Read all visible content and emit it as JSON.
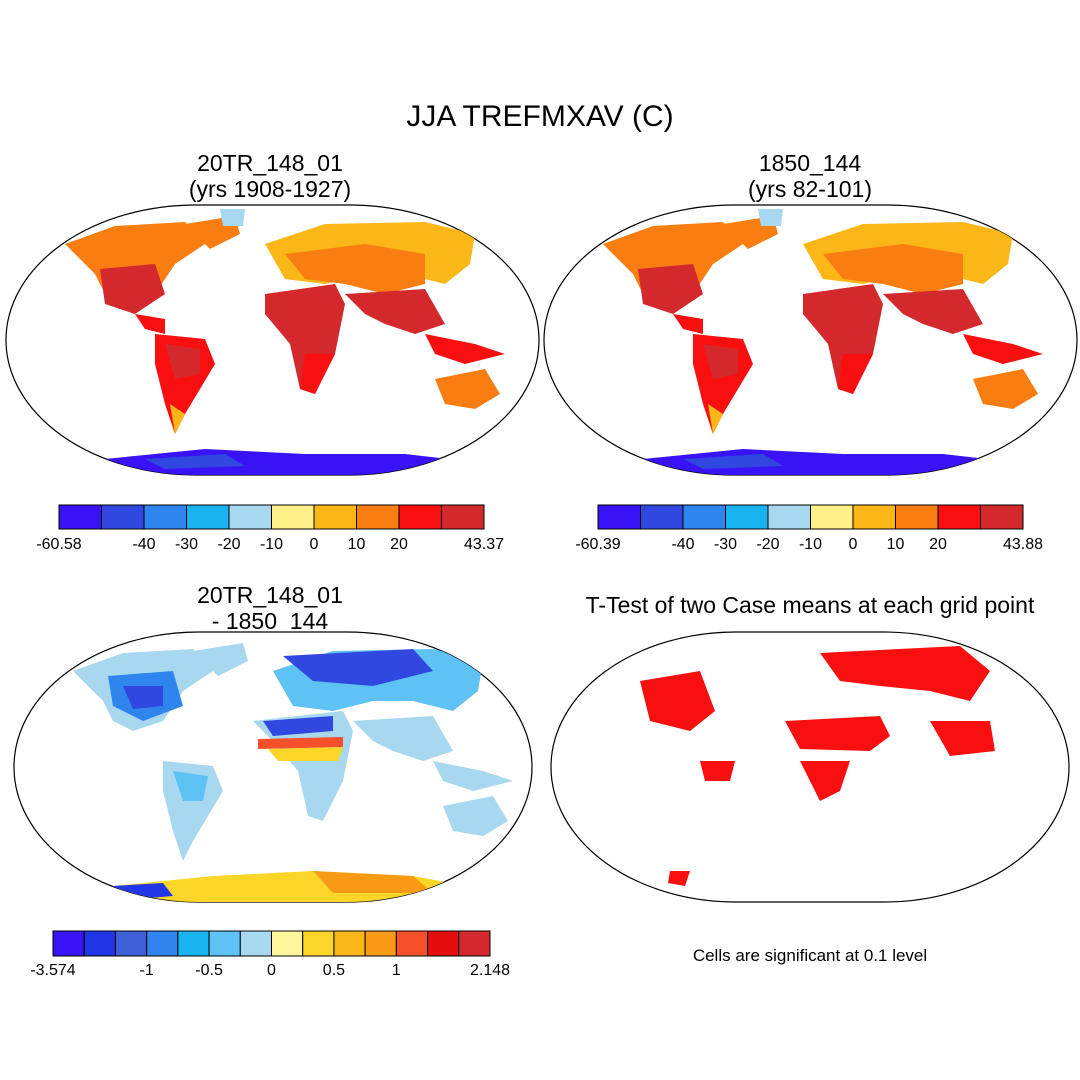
{
  "title": "JJA TREFMXAV (C)",
  "panels": [
    {
      "line1": "20TR_148_01",
      "line2": "(yrs 1908-1927)"
    },
    {
      "line1": "1850_144",
      "line2": "(yrs 82-101)"
    },
    {
      "line1": "20TR_148_01",
      "line2": "- 1850_144"
    },
    {
      "line1": "T-Test of two Case means at each grid point",
      "line2": ""
    }
  ],
  "colorbars": [
    {
      "colors": [
        "#3912f5",
        "#3048e0",
        "#2f84ee",
        "#1ab3f2",
        "#a8d8ef",
        "#fff18a",
        "#fbb718",
        "#f97d10",
        "#f90f0f",
        "#d3292d"
      ],
      "labels": [
        {
          "text": "-60.58",
          "pos": 0
        },
        {
          "text": "-40",
          "pos": 2
        },
        {
          "text": "-30",
          "pos": 3
        },
        {
          "text": "-20",
          "pos": 4
        },
        {
          "text": "-10",
          "pos": 5
        },
        {
          "text": "0",
          "pos": 6
        },
        {
          "text": "10",
          "pos": 7
        },
        {
          "text": "20",
          "pos": 8
        },
        {
          "text": "43.37",
          "pos": 10
        }
      ]
    },
    {
      "colors": [
        "#3912f5",
        "#3048e0",
        "#2f84ee",
        "#1ab3f2",
        "#a8d8ef",
        "#fff18a",
        "#fbb718",
        "#f97d10",
        "#f90f0f",
        "#d3292d"
      ],
      "labels": [
        {
          "text": "-60.39",
          "pos": 0
        },
        {
          "text": "-40",
          "pos": 2
        },
        {
          "text": "-30",
          "pos": 3
        },
        {
          "text": "-20",
          "pos": 4
        },
        {
          "text": "-10",
          "pos": 5
        },
        {
          "text": "0",
          "pos": 6
        },
        {
          "text": "10",
          "pos": 7
        },
        {
          "text": "20",
          "pos": 8
        },
        {
          "text": "43.88",
          "pos": 10
        }
      ]
    },
    {
      "colors": [
        "#3912f5",
        "#2136e6",
        "#3e5fd6",
        "#2f84ee",
        "#1ab3f2",
        "#5ec3f4",
        "#a8d8ef",
        "#fff59a",
        "#fbd528",
        "#fbb718",
        "#f99a14",
        "#f6502a",
        "#e40e0e",
        "#d3292d"
      ],
      "labels": [
        {
          "text": "-3.574",
          "pos": 0
        },
        {
          "text": "-1",
          "pos": 3
        },
        {
          "text": "-0.5",
          "pos": 5
        },
        {
          "text": "0",
          "pos": 7
        },
        {
          "text": "0.5",
          "pos": 9
        },
        {
          "text": "1",
          "pos": 11
        },
        {
          "text": "2.148",
          "pos": 14
        }
      ]
    }
  ],
  "significance_note": "Cells are significant at 0.1 level",
  "styles": {
    "land_hot": "#d3292d",
    "land_warm": "#f90f0f",
    "land_mid": "#f97d10",
    "land_cool": "#fbb718",
    "antarctica": "#3912f5",
    "diff_cold": "#2f84ee",
    "diff_pale": "#a8d8ef",
    "diff_warm": "#fbd528",
    "significant": "#f90f0f"
  }
}
